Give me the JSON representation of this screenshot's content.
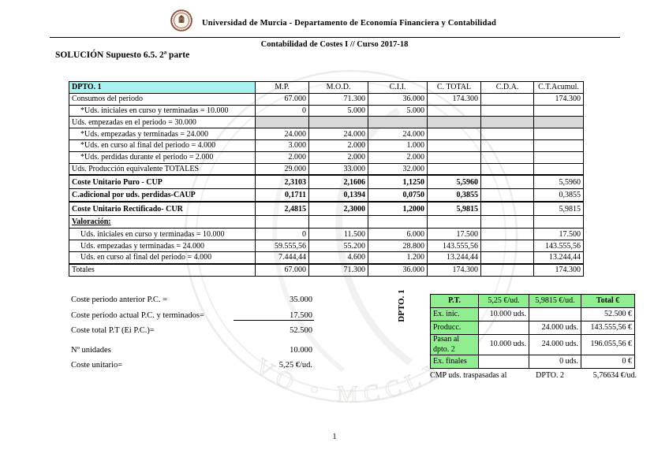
{
  "header": {
    "university_line": "Universidad de Murcia - Departamento de Economía Financiera y Contabilidad",
    "course_line": "Contabilidad de Costes I // Curso 2017-18",
    "title": "SOLUCIÓN Supuesto 6.5. 2ª parte"
  },
  "colors": {
    "header_fill": "#a9f2f2",
    "green_fill": "#90ee90",
    "shaded_fill": "#d9d9d9",
    "logo_red": "#8a4b3c"
  },
  "main_table": {
    "columns": [
      "DPTO. 1",
      "M.P.",
      "M.O.D.",
      "C.I.I.",
      "C. TOTAL",
      "C.D.A.",
      "C.T.Acumul."
    ],
    "rows": [
      {
        "label": "Consumos del periodo",
        "cells": [
          "67.000",
          "71.300",
          "36.000",
          "174.300",
          "",
          "174.300"
        ],
        "cls": ""
      },
      {
        "label": "*Uds. iniciales en curso y terminadas = 10.000",
        "cells": [
          "0",
          "5.000",
          "5.000",
          "",
          "",
          ""
        ],
        "cls": "indent"
      },
      {
        "label": "Uds. empezadas en el periodo = 30.000",
        "cells": [
          "",
          "",
          "",
          "",
          "",
          ""
        ],
        "cls": "shaded"
      },
      {
        "label": "*Uds. empezadas y terminadas = 24.000",
        "cells": [
          "24.000",
          "24.000",
          "24.000",
          "",
          "",
          ""
        ],
        "cls": "indent"
      },
      {
        "label": "*Uds. en curso al final del periodo = 4.000",
        "cells": [
          "3.000",
          "2.000",
          "1.000",
          "",
          "",
          ""
        ],
        "cls": "indent"
      },
      {
        "label": "*Uds. perdidas durante el periodo = 2.000",
        "cells": [
          "2.000",
          "2.000",
          "2.000",
          "",
          "",
          ""
        ],
        "cls": "indent"
      },
      {
        "label": "Uds. Producción equivalente TOTALES",
        "cells": [
          "29.000",
          "33.000",
          "32.000",
          "",
          "",
          ""
        ],
        "cls": ""
      },
      {
        "label": "Coste Unitario Puro - CUP",
        "cells": [
          "2,3103",
          "2,1606",
          "1,1250",
          "5,5960",
          "",
          "5,5960"
        ],
        "cls": "bold thick-top plain-last"
      },
      {
        "label": "C.adicional por uds. perdidas-CAUP",
        "cells": [
          "0,1711",
          "0,1394",
          "0,0750",
          "0,3855",
          "",
          "0,3855"
        ],
        "cls": "bold plain-last"
      },
      {
        "label": "Coste Unitario Rectificado- CUR",
        "cells": [
          "2,4815",
          "2,3000",
          "1,2000",
          "5,9815",
          "",
          "5,9815"
        ],
        "cls": "bold thick-top plain-last"
      },
      {
        "label": "Valoración:",
        "cells": [
          "",
          "",
          "",
          "",
          "",
          ""
        ],
        "cls": "bold underline-label"
      },
      {
        "label": "Uds. iniciales en curso y terminadas = 10.000",
        "cells": [
          "0",
          "11.500",
          "6.000",
          "17.500",
          "",
          "17.500"
        ],
        "cls": "indent"
      },
      {
        "label": "Uds. empezadas y terminadas = 24.000",
        "cells": [
          "59.555,56",
          "55.200",
          "28.800",
          "143.555,56",
          "",
          "143.555,56"
        ],
        "cls": "indent"
      },
      {
        "label": "Uds. en curso al final del periodo = 4.000",
        "cells": [
          "7.444,44",
          "4.600",
          "1.200",
          "13.244,44",
          "",
          "13.244,44"
        ],
        "cls": "indent"
      },
      {
        "label": "Totales",
        "cells": [
          "67.000",
          "71.300",
          "36.000",
          "174.300",
          "",
          "174.300"
        ],
        "cls": "thick-top"
      }
    ]
  },
  "summary": {
    "items": [
      {
        "label": "Coste periodo anterior P.C. =",
        "value": "35.000"
      },
      {
        "label": "Coste periodo actual P.C. y terminados=",
        "value": "17.500",
        "underline": true
      },
      {
        "label": "Coste total P.T (Ei P.C.)=",
        "value": "52.500"
      },
      {
        "label": "Nº unidades",
        "value": "10.000",
        "gap_before": true
      },
      {
        "label": "Coste unitario=",
        "value": "5,25 €/ud."
      }
    ]
  },
  "dept_label": "DPTO. 1",
  "pt_table": {
    "columns": [
      "P.T.",
      "5,25 €/ud.",
      "5,9815 €/ud.",
      "Total €"
    ],
    "rows": [
      {
        "label": "Ex. inic.",
        "cells": [
          "10.000 uds.",
          "",
          "52.500 €"
        ]
      },
      {
        "label": "Producc.",
        "cells": [
          "",
          "24.000 uds.",
          "143.555,56 €"
        ]
      },
      {
        "label": "Pasan al dpto. 2",
        "cells": [
          "10.000 uds.",
          "24.000 uds.",
          "196.055,56 €"
        ]
      },
      {
        "label": "Ex. finales",
        "cells": [
          "",
          "0 uds.",
          "0 €"
        ]
      }
    ],
    "footer": {
      "label": "CMP uds. traspasadas al",
      "dept": "DPTO. 2",
      "value": "5,76634 €/ud."
    }
  },
  "watermark_text": "VO • MCCLX",
  "page_number": "1"
}
